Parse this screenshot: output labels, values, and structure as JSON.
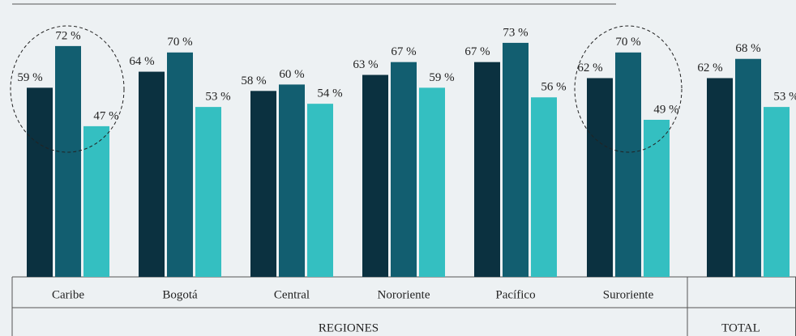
{
  "chart_data": {
    "type": "bar",
    "categories": [
      "Caribe",
      "Bogotá",
      "Central",
      "Nororiente",
      "Pacífico",
      "Suroriente",
      null
    ],
    "group_labels": [
      "REGIONES",
      "TOTAL"
    ],
    "series": [
      {
        "color": "#0b3140",
        "values": [
          59,
          64,
          58,
          63,
          67,
          62,
          62
        ],
        "value_labels": [
          "59 %",
          "64 %",
          "58 %",
          "63 %",
          "67 %",
          "62 %",
          "62 %"
        ]
      },
      {
        "color": "#125e70",
        "values": [
          72,
          70,
          60,
          67,
          73,
          70,
          68
        ],
        "value_labels": [
          "72 %",
          "70 %",
          "60 %",
          "67 %",
          "73 %",
          "70 %",
          "68 %"
        ]
      },
      {
        "color": "#34bfc1",
        "values": [
          47,
          53,
          54,
          59,
          56,
          49,
          53
        ],
        "value_labels": [
          "47 %",
          "53 %",
          "54 %",
          "59 %",
          "56 %",
          "49 %",
          "53 %"
        ]
      }
    ]
  }
}
